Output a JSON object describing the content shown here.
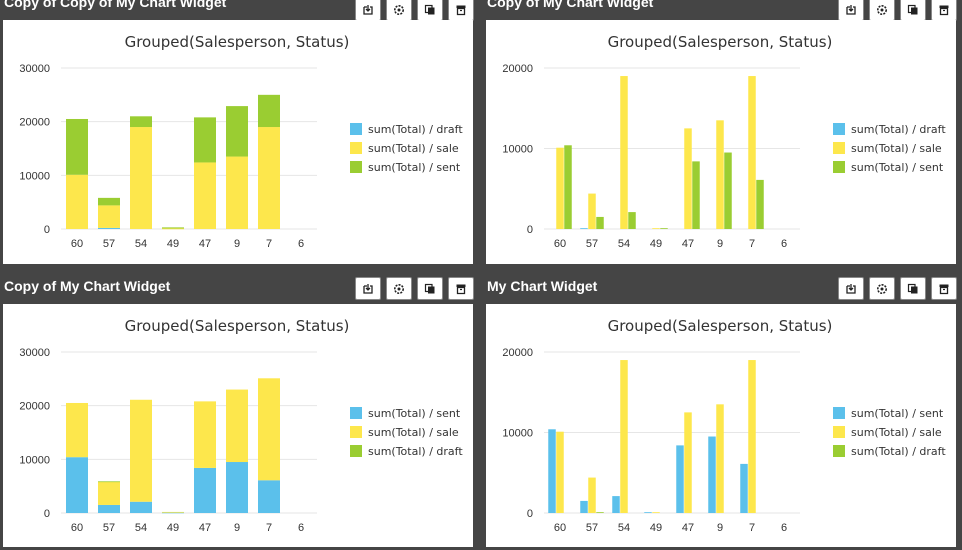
{
  "colors": {
    "sent": "#9acd32",
    "sale": "#fde74c",
    "draft": "#5bc0eb"
  },
  "widgets": [
    {
      "title": "Copy of Copy of My Chart Widget",
      "toolbar": [
        "export-icon",
        "settings-icon",
        "copy-icon",
        "delete-icon"
      ],
      "chart_data": {
        "type": "bar",
        "stacked": true,
        "title": "Grouped(Salesperson, Status)",
        "categories": [
          "60",
          "57",
          "54",
          "49",
          "47",
          "9",
          "7",
          "6"
        ],
        "ylim": [
          0,
          30000
        ],
        "yticks": [
          "0",
          "10000",
          "20000",
          "30000"
        ],
        "series": [
          {
            "name": "sum(Total) / draft",
            "key": "draft",
            "values": [
              0,
              200,
              0,
              0,
              0,
              0,
              0,
              0
            ]
          },
          {
            "name": "sum(Total) / sale",
            "key": "sale",
            "values": [
              10100,
              4200,
              19000,
              100,
              12400,
              13500,
              19000,
              0
            ]
          },
          {
            "name": "sum(Total) / sent",
            "key": "sent",
            "values": [
              10400,
              1400,
              2000,
              200,
              8400,
              9400,
              6000,
              0
            ]
          }
        ],
        "legend": "right"
      }
    },
    {
      "title": "Copy of My Chart Widget",
      "toolbar": [
        "export-icon",
        "settings-icon",
        "copy-icon",
        "delete-icon"
      ],
      "chart_data": {
        "type": "bar",
        "stacked": false,
        "title": "Grouped(Salesperson, Status)",
        "categories": [
          "60",
          "57",
          "54",
          "49",
          "47",
          "9",
          "7",
          "6"
        ],
        "ylim": [
          0,
          20000
        ],
        "yticks": [
          "0",
          "10000",
          "20000"
        ],
        "series": [
          {
            "name": "sum(Total) / draft",
            "key": "draft",
            "values": [
              0,
              100,
              0,
              0,
              0,
              0,
              0,
              0
            ]
          },
          {
            "name": "sum(Total) / sale",
            "key": "sale",
            "values": [
              10100,
              4400,
              19000,
              100,
              12500,
              13500,
              19000,
              0
            ]
          },
          {
            "name": "sum(Total) / sent",
            "key": "sent",
            "values": [
              10400,
              1500,
              2100,
              100,
              8400,
              9500,
              6100,
              0
            ]
          }
        ],
        "legend": "right"
      }
    },
    {
      "title": "Copy of My Chart Widget",
      "toolbar": [
        "export-icon",
        "settings-icon",
        "copy-icon",
        "delete-icon"
      ],
      "chart_data": {
        "type": "bar",
        "stacked": true,
        "title": "Grouped(Salesperson, Status)",
        "categories": [
          "60",
          "57",
          "54",
          "49",
          "47",
          "9",
          "7",
          "6"
        ],
        "ylim": [
          0,
          30000
        ],
        "yticks": [
          "0",
          "10000",
          "20000",
          "30000"
        ],
        "series": [
          {
            "name": "sum(Total) / sent",
            "key": "draft",
            "values": [
              10400,
              1500,
              2100,
              100,
              8400,
              9500,
              6100,
              0
            ]
          },
          {
            "name": "sum(Total) / sale",
            "key": "sale",
            "values": [
              10100,
              4300,
              19000,
              100,
              12400,
              13500,
              19000,
              0
            ]
          },
          {
            "name": "sum(Total) / draft",
            "key": "sent",
            "values": [
              0,
              100,
              0,
              0,
              0,
              0,
              0,
              0
            ]
          }
        ],
        "legend": "right"
      }
    },
    {
      "title": "My Chart Widget",
      "toolbar": [
        "export-icon",
        "settings-icon",
        "copy-icon",
        "delete-icon"
      ],
      "chart_data": {
        "type": "bar",
        "stacked": false,
        "title": "Grouped(Salesperson, Status)",
        "categories": [
          "60",
          "57",
          "54",
          "49",
          "47",
          "9",
          "7",
          "6"
        ],
        "ylim": [
          0,
          20000
        ],
        "yticks": [
          "0",
          "10000",
          "20000"
        ],
        "series": [
          {
            "name": "sum(Total) / sent",
            "key": "draft",
            "values": [
              10400,
              1500,
              2100,
              100,
              8400,
              9500,
              6100,
              0
            ]
          },
          {
            "name": "sum(Total) / sale",
            "key": "sale",
            "values": [
              10100,
              4400,
              19000,
              100,
              12500,
              13500,
              19000,
              0
            ]
          },
          {
            "name": "sum(Total) / draft",
            "key": "sent",
            "values": [
              0,
              100,
              0,
              0,
              0,
              0,
              0,
              0
            ]
          }
        ],
        "legend": "right"
      }
    }
  ]
}
